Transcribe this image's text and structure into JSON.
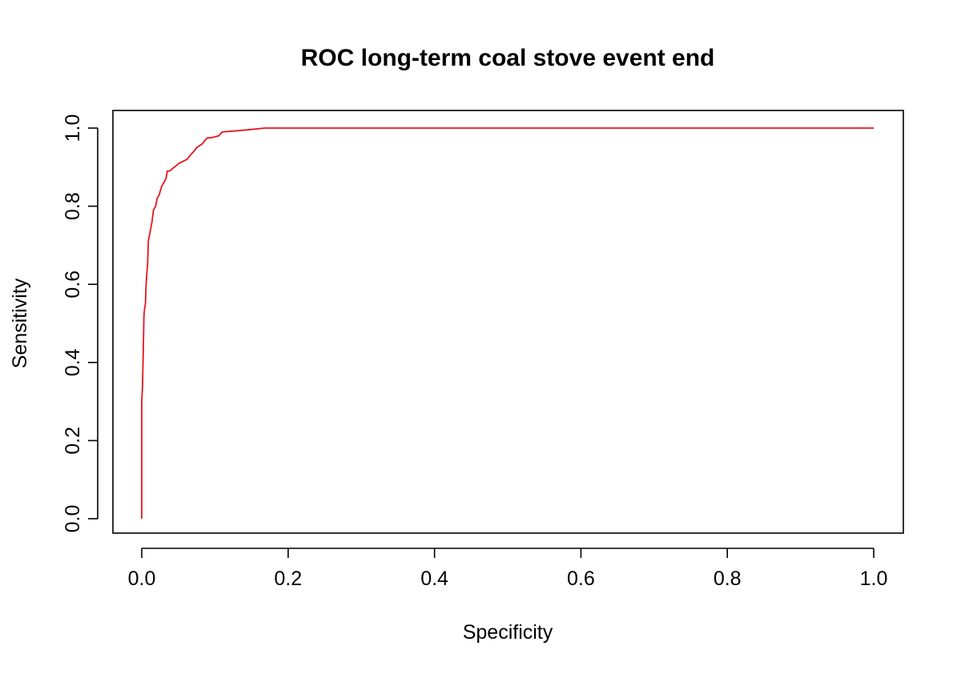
{
  "chart_data": {
    "type": "line",
    "title": "ROC long-term coal stove event end",
    "xlabel": "Specificity",
    "ylabel": "Sensitivity",
    "xlim": [
      0.0,
      1.0
    ],
    "ylim": [
      0.0,
      1.0
    ],
    "x_ticks": [
      "0.0",
      "0.2",
      "0.4",
      "0.6",
      "0.8",
      "1.0"
    ],
    "y_ticks": [
      "0.0",
      "0.2",
      "0.4",
      "0.6",
      "0.8",
      "1.0"
    ],
    "grid": false,
    "legend": "none",
    "colors": {
      "line": "#e8141b",
      "axis": "#000000"
    },
    "series": [
      {
        "x": [
          0.0,
          0.0,
          0.0,
          0.0,
          0.001,
          0.001,
          0.002,
          0.002,
          0.003,
          0.003,
          0.004,
          0.004,
          0.005,
          0.005,
          0.006,
          0.006,
          0.007,
          0.007,
          0.008,
          0.008,
          0.009,
          0.009,
          0.01,
          0.01,
          0.012,
          0.012,
          0.014,
          0.014,
          0.016,
          0.016,
          0.019,
          0.019,
          0.021,
          0.021,
          0.024,
          0.024,
          0.027,
          0.027,
          0.03,
          0.03,
          0.033,
          0.033,
          0.035,
          0.035,
          0.038,
          0.038,
          0.051,
          0.051,
          0.062,
          0.062,
          0.066,
          0.066,
          0.071,
          0.071,
          0.075,
          0.075,
          0.083,
          0.083,
          0.087,
          0.087,
          0.09,
          0.09,
          0.094,
          0.094,
          0.105,
          0.105,
          0.11,
          0.11,
          0.142,
          0.142,
          0.168,
          0.168,
          1.0
        ],
        "y": [
          0.0,
          0.25,
          0.3,
          0.3,
          0.34,
          0.34,
          0.42,
          0.42,
          0.52,
          0.52,
          0.54,
          0.54,
          0.55,
          0.55,
          0.6,
          0.6,
          0.63,
          0.63,
          0.65,
          0.65,
          0.71,
          0.71,
          0.72,
          0.72,
          0.74,
          0.74,
          0.76,
          0.76,
          0.79,
          0.79,
          0.8,
          0.8,
          0.82,
          0.82,
          0.83,
          0.83,
          0.85,
          0.85,
          0.86,
          0.86,
          0.87,
          0.87,
          0.89,
          0.89,
          0.89,
          0.89,
          0.91,
          0.91,
          0.92,
          0.92,
          0.93,
          0.93,
          0.94,
          0.94,
          0.95,
          0.95,
          0.96,
          0.96,
          0.97,
          0.97,
          0.975,
          0.975,
          0.975,
          0.975,
          0.98,
          0.98,
          0.99,
          0.99,
          0.995,
          0.995,
          1.0,
          1.0,
          1.0
        ]
      }
    ]
  }
}
